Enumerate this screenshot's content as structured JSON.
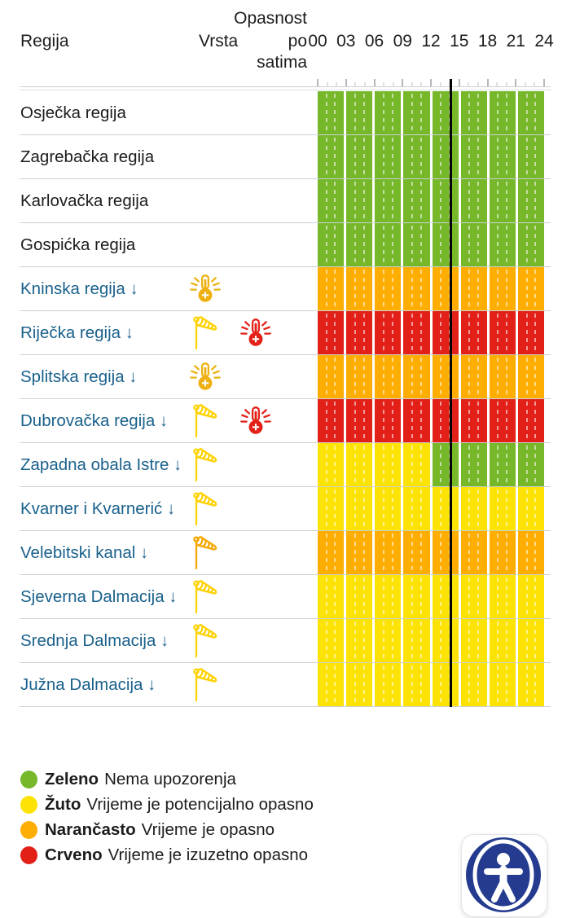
{
  "header": {
    "col_region": "Regija",
    "col_type": "Vrsta",
    "hazard_header": "Opasnost po satima",
    "hazard_lines": [
      "Opasnost",
      "po",
      "satima"
    ],
    "hours": [
      "00",
      "03",
      "06",
      "09",
      "12",
      "15",
      "18",
      "21",
      "24"
    ]
  },
  "chart_data": {
    "type": "heatmap",
    "title": "Opasnost po satima",
    "x_hours": [
      0,
      3,
      6,
      9,
      12,
      15,
      18,
      21,
      24
    ],
    "segment_hours": 3,
    "now_line_hour": 14,
    "level_colors": {
      "green": "#76b82a",
      "yellow": "#fde305",
      "orange": "#feae02",
      "red": "#e22018"
    },
    "rows": [
      {
        "region": "Osječka regija",
        "link": false,
        "arrow": "",
        "icons": [],
        "segments": [
          "green",
          "green",
          "green",
          "green",
          "green",
          "green",
          "green",
          "green"
        ]
      },
      {
        "region": "Zagrebačka regija",
        "link": false,
        "arrow": "",
        "icons": [],
        "segments": [
          "green",
          "green",
          "green",
          "green",
          "green",
          "green",
          "green",
          "green"
        ]
      },
      {
        "region": "Karlovačka regija",
        "link": false,
        "arrow": "",
        "icons": [],
        "segments": [
          "green",
          "green",
          "green",
          "green",
          "green",
          "green",
          "green",
          "green"
        ]
      },
      {
        "region": "Gospićka regija",
        "link": false,
        "arrow": "",
        "icons": [],
        "segments": [
          "green",
          "green",
          "green",
          "green",
          "green",
          "green",
          "green",
          "green"
        ]
      },
      {
        "region": "Kninska regija",
        "link": true,
        "arrow": "↓",
        "icons": [
          {
            "icon": "heat-thermometer-icon",
            "color": "#eeb111"
          }
        ],
        "segments": [
          "orange",
          "orange",
          "orange",
          "orange",
          "orange",
          "orange",
          "orange",
          "orange"
        ]
      },
      {
        "region": "Riječka regija",
        "link": true,
        "arrow": "↓",
        "icons": [
          {
            "icon": "windsock-icon",
            "color": "#ffd203"
          },
          {
            "icon": "heat-thermometer-icon",
            "color": "#e32119"
          }
        ],
        "segments": [
          "red",
          "red",
          "red",
          "red",
          "red",
          "red",
          "red",
          "red"
        ]
      },
      {
        "region": "Splitska regija",
        "link": true,
        "arrow": "↓",
        "icons": [
          {
            "icon": "heat-thermometer-icon",
            "color": "#eeb111"
          }
        ],
        "segments": [
          "orange",
          "orange",
          "orange",
          "orange",
          "orange",
          "orange",
          "orange",
          "orange"
        ]
      },
      {
        "region": "Dubrovačka regija",
        "link": true,
        "arrow": "↓",
        "icons": [
          {
            "icon": "windsock-icon",
            "color": "#ffd203"
          },
          {
            "icon": "heat-thermometer-icon",
            "color": "#e32119"
          }
        ],
        "segments": [
          "red",
          "red",
          "red",
          "red",
          "red",
          "red",
          "red",
          "red"
        ]
      },
      {
        "region": "Zapadna obala Istre",
        "link": true,
        "arrow": "↓",
        "icons": [
          {
            "icon": "windsock-icon",
            "color": "#ffd203"
          }
        ],
        "segments": [
          "yellow",
          "yellow",
          "yellow",
          "yellow",
          "green",
          "green",
          "green",
          "green"
        ]
      },
      {
        "region": "Kvarner i Kvarnerić",
        "link": true,
        "arrow": "↓",
        "icons": [
          {
            "icon": "windsock-icon",
            "color": "#ffd203"
          }
        ],
        "segments": [
          "yellow",
          "yellow",
          "yellow",
          "yellow",
          "yellow",
          "yellow",
          "yellow",
          "yellow"
        ]
      },
      {
        "region": "Velebitski kanal",
        "link": true,
        "arrow": "↓",
        "icons": [
          {
            "icon": "windsock-icon",
            "color": "#f5a800"
          }
        ],
        "segments": [
          "orange",
          "orange",
          "orange",
          "orange",
          "orange",
          "orange",
          "orange",
          "orange"
        ]
      },
      {
        "region": "Sjeverna Dalmacija",
        "link": true,
        "arrow": "↓",
        "icons": [
          {
            "icon": "windsock-icon",
            "color": "#ffd203"
          }
        ],
        "segments": [
          "yellow",
          "yellow",
          "yellow",
          "yellow",
          "yellow",
          "yellow",
          "yellow",
          "yellow"
        ]
      },
      {
        "region": "Srednja Dalmacija",
        "link": true,
        "arrow": "↓",
        "icons": [
          {
            "icon": "windsock-icon",
            "color": "#ffd203"
          }
        ],
        "segments": [
          "yellow",
          "yellow",
          "yellow",
          "yellow",
          "yellow",
          "yellow",
          "yellow",
          "yellow"
        ]
      },
      {
        "region": "Južna Dalmacija",
        "link": true,
        "arrow": "↓",
        "icons": [
          {
            "icon": "windsock-icon",
            "color": "#ffd203"
          }
        ],
        "segments": [
          "yellow",
          "yellow",
          "yellow",
          "yellow",
          "yellow",
          "yellow",
          "yellow",
          "yellow"
        ]
      }
    ]
  },
  "legend": {
    "items": [
      {
        "name": "Zeleno",
        "description": "Nema upozorenja",
        "color": "#76b82a"
      },
      {
        "name": "Žuto",
        "description": "Vrijeme je potencijalno opasno",
        "color": "#fde305"
      },
      {
        "name": "Narančasto",
        "description": "Vrijeme je opasno",
        "color": "#feae02"
      },
      {
        "name": "Crveno",
        "description": "Vrijeme je izuzetno opasno",
        "color": "#e22018"
      }
    ]
  },
  "widgets": {
    "accessibility_color": "#243b8f"
  }
}
